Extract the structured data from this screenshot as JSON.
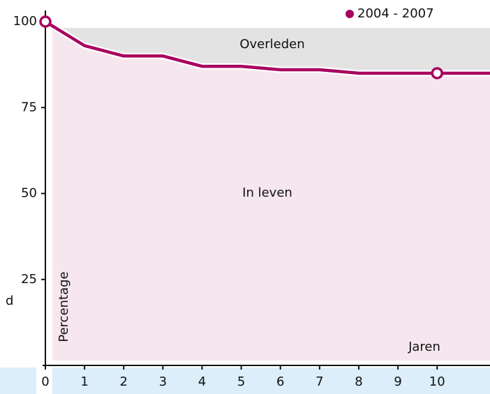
{
  "chart_data": {
    "type": "line",
    "series": [
      {
        "name": "2004 - 2007",
        "color": "#a8005f",
        "values": [
          100,
          93,
          90,
          90,
          87,
          87,
          86,
          86,
          85,
          85,
          85
        ]
      }
    ],
    "x": [
      0,
      1,
      2,
      3,
      4,
      5,
      6,
      7,
      8,
      9,
      10
    ],
    "xlim": [
      0,
      11.35
    ],
    "xticks": [
      0,
      1,
      2,
      3,
      4,
      5,
      6,
      7,
      8,
      9,
      10
    ],
    "ylim": [
      0,
      100
    ],
    "yticks": [
      25,
      50,
      75,
      100
    ],
    "xlabel": "Jaren",
    "ylabel": "Percentage",
    "annotations": [
      "Overleden",
      "In leven",
      "d"
    ],
    "legend": "top-right"
  }
}
